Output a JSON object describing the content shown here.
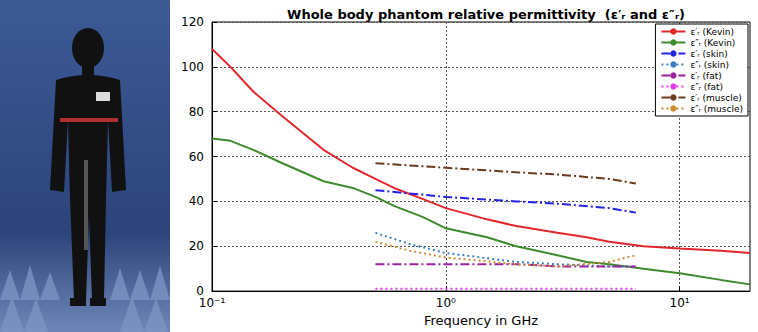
{
  "chart_data": {
    "type": "line",
    "title": "Whole body phantom relative permittivity  (ε′ᵣ and ε″ᵣ)",
    "x_label": "Frequency in GHz",
    "log": "x",
    "grid": true,
    "legend": "upper right",
    "xlim": [
      0.1,
      20
    ],
    "xticks": [
      {
        "value": 0.1,
        "label": "10⁻¹"
      },
      {
        "value": 1,
        "label": "10⁰"
      },
      {
        "value": 10,
        "label": "10¹"
      }
    ],
    "ylim": [
      0,
      120
    ],
    "yticks": [
      0,
      20,
      40,
      60,
      80,
      100,
      120
    ],
    "series": [
      {
        "name": "ε′ᵣ (Kevin)",
        "color": "#e3262b",
        "line_style": "solid",
        "x": [
          0.1,
          0.12,
          0.15,
          0.2,
          0.3,
          0.4,
          0.5,
          0.6,
          0.8,
          1,
          1.5,
          2,
          3,
          4,
          5,
          7,
          10,
          15,
          20
        ],
        "values": [
          108,
          100,
          89,
          78,
          63,
          55,
          50,
          46,
          41,
          37,
          32,
          29,
          26,
          24,
          22,
          20,
          19,
          18,
          17
        ]
      },
      {
        "name": "ε″ᵣ (Kevin)",
        "color": "#3f8a2c",
        "line_style": "solid",
        "x": [
          0.1,
          0.12,
          0.15,
          0.2,
          0.3,
          0.4,
          0.5,
          0.6,
          0.8,
          1,
          1.5,
          2,
          3,
          4,
          5,
          7,
          10,
          15,
          20
        ],
        "values": [
          68,
          67,
          63,
          57,
          49,
          46,
          42,
          38,
          33,
          28,
          24,
          20,
          16,
          13,
          12,
          10,
          8,
          5,
          3
        ]
      },
      {
        "name": "ε′ᵣ (skin)",
        "color": "#2323e0",
        "line_style": "dashdot",
        "x": [
          0.5,
          1,
          2,
          3,
          5,
          6.5
        ],
        "values": [
          45,
          42,
          40,
          39,
          37,
          35
        ]
      },
      {
        "name": "ε″ᵣ (skin)",
        "color": "#3a7fbf",
        "line_style": "dotted",
        "x": [
          0.5,
          0.7,
          1,
          2,
          3,
          5,
          6.5
        ],
        "values": [
          26,
          21,
          17,
          13,
          12,
          11,
          11
        ]
      },
      {
        "name": "ε′ᵣ (fat)",
        "color": "#a020a0",
        "line_style": "dashdot",
        "x": [
          0.5,
          1,
          2,
          3,
          5,
          6.5
        ],
        "values": [
          12,
          12,
          12,
          11,
          11,
          11
        ]
      },
      {
        "name": "ε″ᵣ (fat)",
        "color": "#e040e0",
        "line_style": "dotted",
        "x": [
          0.5,
          1,
          2,
          3,
          5,
          6.5
        ],
        "values": [
          1,
          1,
          1,
          1,
          1,
          1
        ]
      },
      {
        "name": "ε′ᵣ (muscle)",
        "color": "#6b3a1e",
        "line_style": "dashdot",
        "x": [
          0.5,
          1,
          2,
          3,
          5,
          6.5
        ],
        "values": [
          57,
          55,
          53,
          52,
          50,
          48
        ]
      },
      {
        "name": "ε″ᵣ (muscle)",
        "color": "#d08a30",
        "line_style": "dotted",
        "x": [
          0.5,
          0.7,
          1,
          2,
          3,
          5,
          6.5
        ],
        "values": [
          22,
          18,
          15,
          12,
          11,
          13,
          16
        ]
      }
    ]
  }
}
